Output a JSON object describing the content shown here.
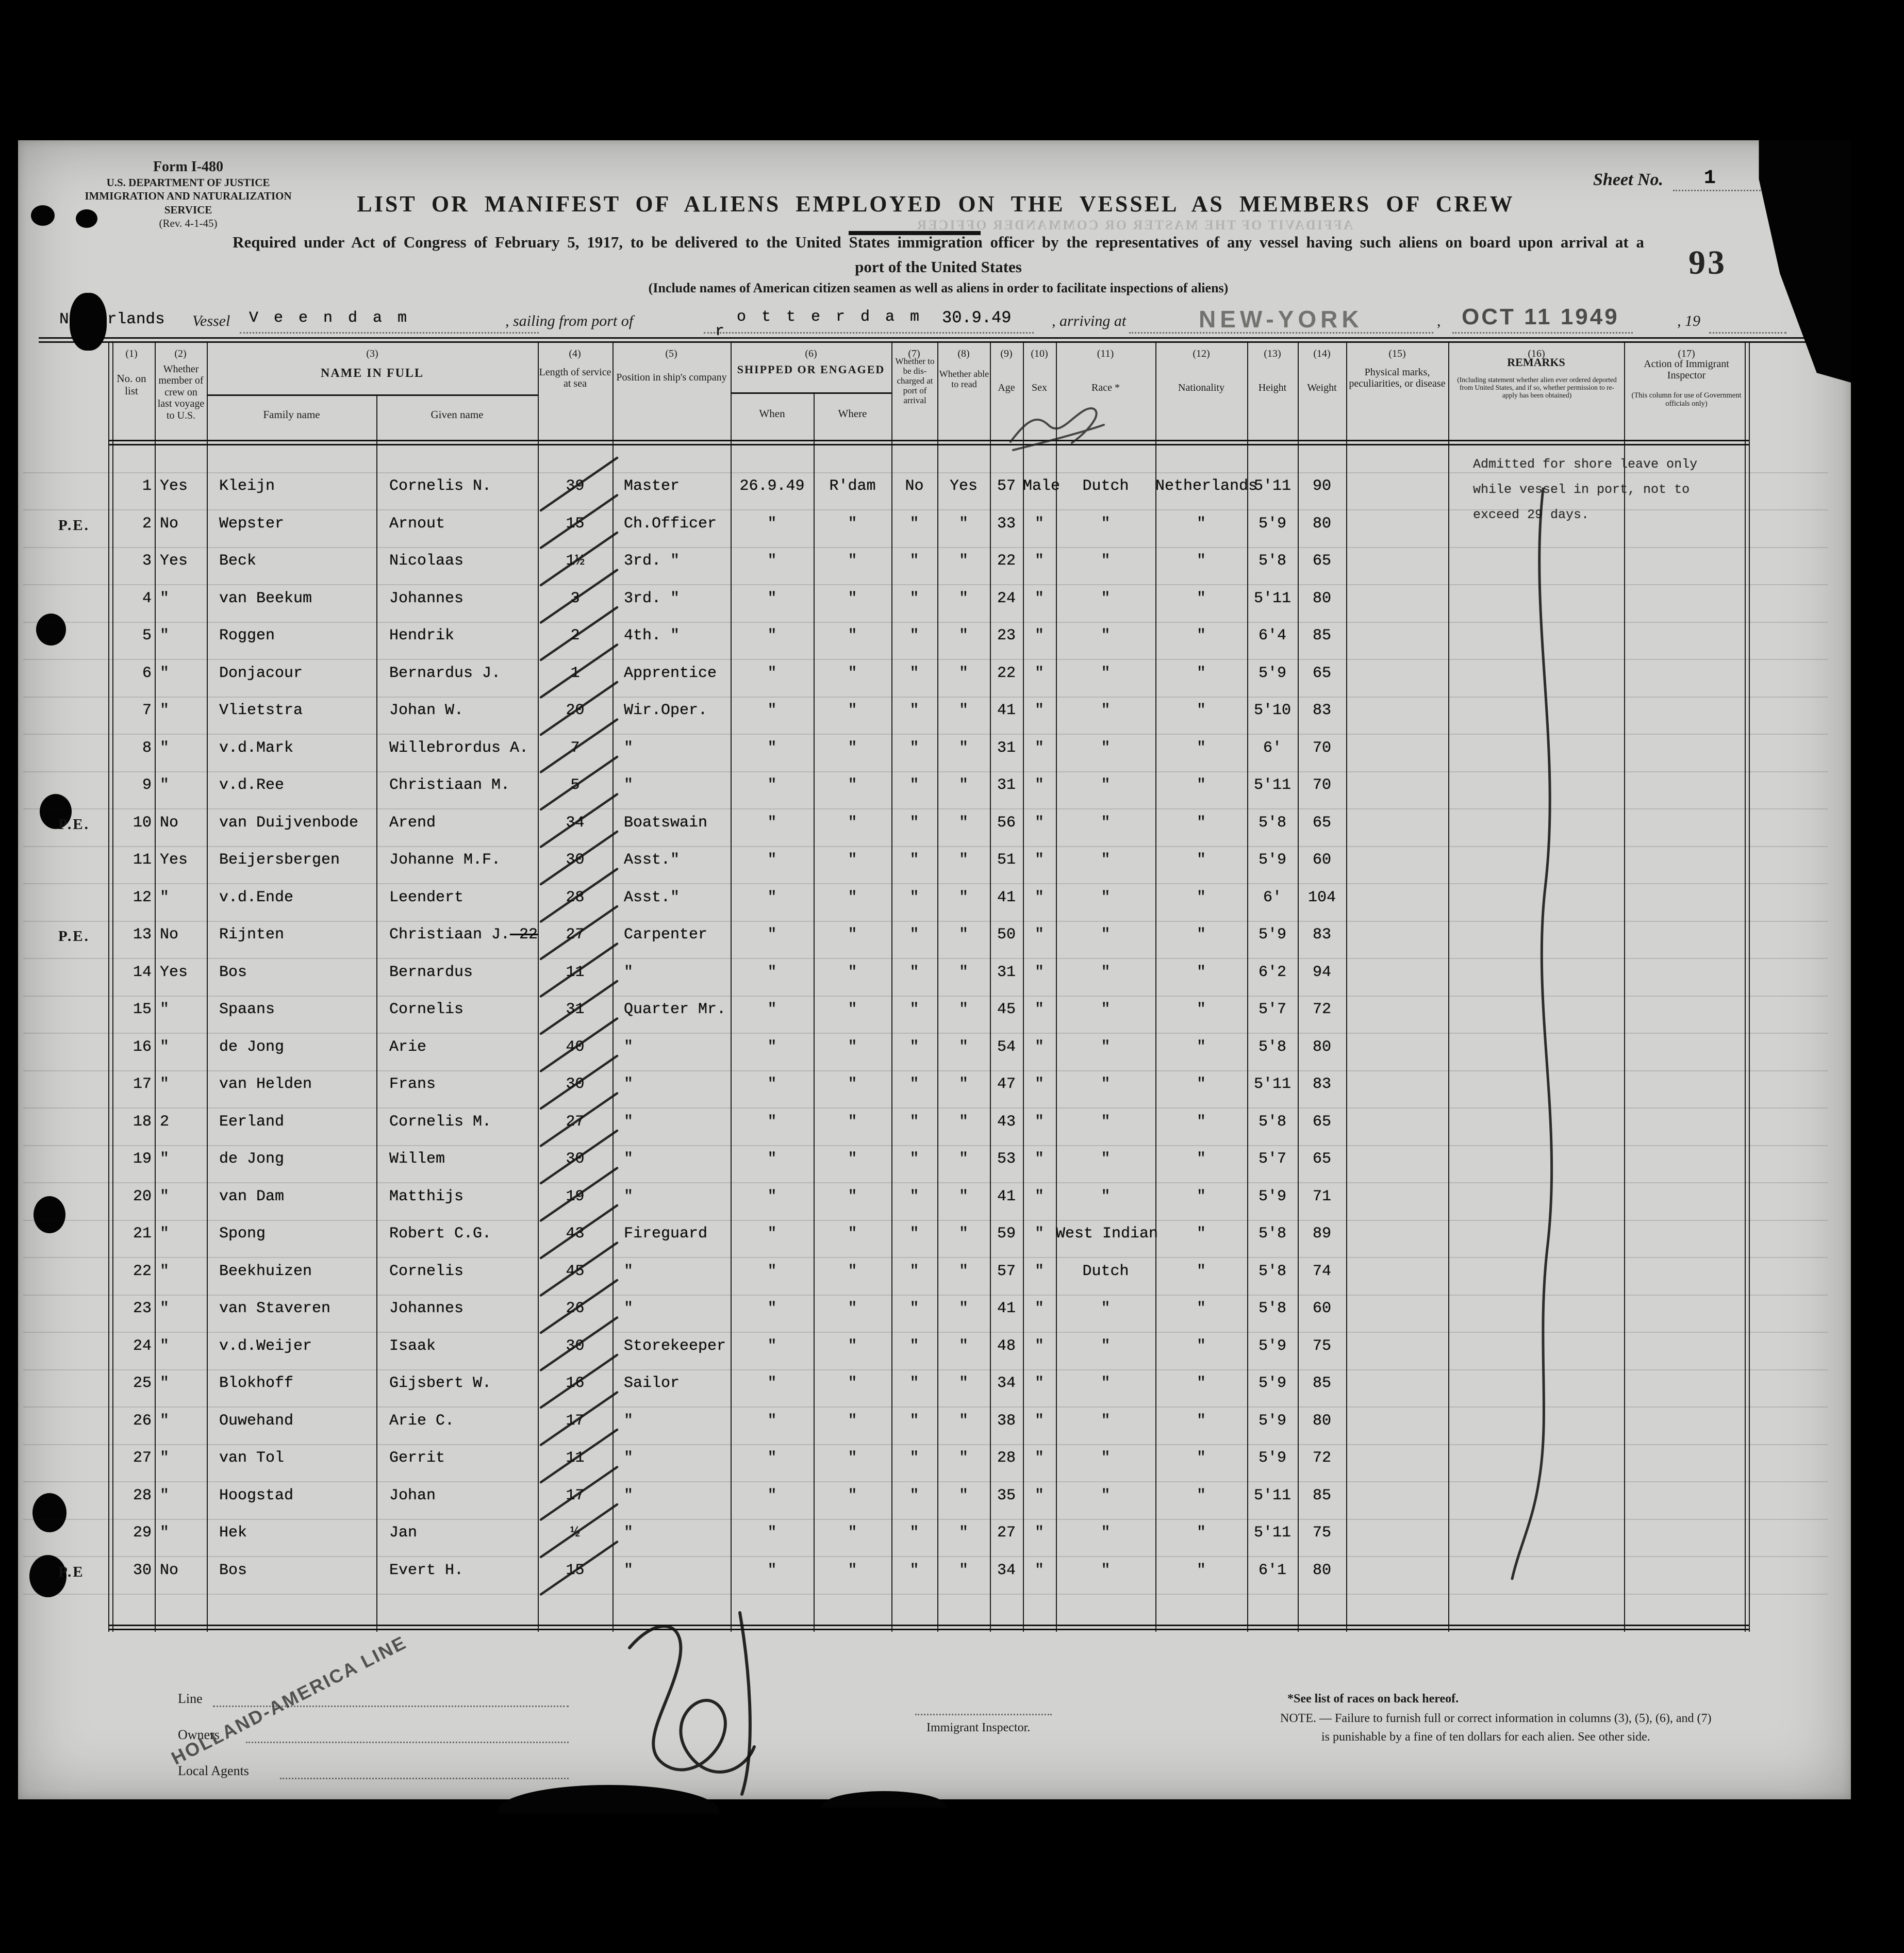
{
  "form": {
    "form_id": "Form I-480",
    "dept": "U.S. DEPARTMENT OF JUSTICE",
    "service": "IMMIGRATION AND NATURALIZATION SERVICE",
    "revision": "(Rev. 4-1-45)",
    "sheet_label": "Sheet No.",
    "sheet_value": "1",
    "stamp_number": "93",
    "title": "LIST OR MANIFEST OF ALIENS EMPLOYED ON THE VESSEL AS MEMBERS OF CREW",
    "subtitle_line1": "Required under Act of Congress of February 5, 1917, to be delivered to the United States immigration officer by the representatives of any vessel having such aliens on board upon arrival at a",
    "subtitle_line2": "port of the United States",
    "include_note": "(Include names of American citizen seamen as well as aliens in order to facilitate inspections of aliens)",
    "bleed_through": "AFFIDAVIT OF THE MASTER OR COMMANDER OFFICER"
  },
  "voyage": {
    "country": "Netherlands",
    "vessel_label": "Vessel",
    "vessel_name": "V e e n d a m",
    "sailing_label": ", sailing from port of",
    "port_first_letter": "r",
    "port_rest": "o t t e r d a m",
    "sailing_date": "30.9.49",
    "arriving_label": ", arriving at",
    "arrival_port": "NEW-YORK",
    "comma": ",",
    "arrival_stamp": "OCT 11 1949",
    "year_label": ", 19"
  },
  "columns": {
    "numbers": [
      "(1)",
      "(2)",
      "(3)",
      "(4)",
      "(5)",
      "(6)",
      "(7)",
      "(8)",
      "(9)",
      "(10)",
      "(11)",
      "(12)",
      "(13)",
      "(14)",
      "(15)",
      "(16)",
      "(17)"
    ],
    "c1": "No. on list",
    "c2": "Whether member of crew on last voyage to U.S.",
    "c3": "NAME IN FULL",
    "c3a": "Family name",
    "c3b": "Given name",
    "c4": "Length of service at sea",
    "c5": "Position in ship's company",
    "c6": "SHIPPED OR ENGAGED",
    "c6a": "When",
    "c6b": "Where",
    "c7": "Whether to be dis- charged at port of arrival",
    "c8": "Whether able to read",
    "c9": "Age",
    "c10": "Sex",
    "c11": "Race *",
    "c12": "Nationality",
    "c13": "Height",
    "c14": "Weight",
    "c15": "Physical marks, peculiarities, or disease",
    "c16": "REMARKS",
    "c16_note": "(Including statement whether alien ever ordered deported from United States, and if so, whether permission to re- apply has been obtained)",
    "c17": "Action of Immigrant Inspector",
    "c17_note": "(This column for use of Government officials only)"
  },
  "remark_lines": [
    "Admitted for shore leave only",
    "while vessel in port, not to",
    "exceed 29 days."
  ],
  "rows": [
    {
      "no": "1",
      "margin": "",
      "crew": "Yes",
      "family": "Kleijn",
      "given": "Cornelis N.",
      "service": "39",
      "position": "Master",
      "when": "26.9.49",
      "where": "R'dam",
      "disch": "No",
      "read": "Yes",
      "age": "57",
      "sex": "Male",
      "race": "Dutch",
      "nat": "Netherlands",
      "height": "5'11",
      "weight": "90"
    },
    {
      "no": "2",
      "margin": "P.E.",
      "crew": "No",
      "family": "Wepster",
      "given": "Arnout",
      "service": "15",
      "position": "Ch.Officer",
      "when": "\"",
      "where": "\"",
      "disch": "\"",
      "read": "\"",
      "age": "33",
      "sex": "\"",
      "race": "\"",
      "nat": "\"",
      "height": "5'9",
      "weight": "80"
    },
    {
      "no": "3",
      "margin": "",
      "crew": "Yes",
      "family": "Beck",
      "given": "Nicolaas",
      "service": "1½",
      "position": "3rd. \"",
      "when": "\"",
      "where": "\"",
      "disch": "\"",
      "read": "\"",
      "age": "22",
      "sex": "\"",
      "race": "\"",
      "nat": "\"",
      "height": "5'8",
      "weight": "65"
    },
    {
      "no": "4",
      "margin": "",
      "crew": "\"",
      "family": "van Beekum",
      "given": "Johannes",
      "service": "3",
      "position": "3rd. \"",
      "when": "\"",
      "where": "\"",
      "disch": "\"",
      "read": "\"",
      "age": "24",
      "sex": "\"",
      "race": "\"",
      "nat": "\"",
      "height": "5'11",
      "weight": "80"
    },
    {
      "no": "5",
      "margin": "",
      "crew": "\"",
      "family": "Roggen",
      "given": "Hendrik",
      "service": "2",
      "position": "4th. \"",
      "when": "\"",
      "where": "\"",
      "disch": "\"",
      "read": "\"",
      "age": "23",
      "sex": "\"",
      "race": "\"",
      "nat": "\"",
      "height": "6'4",
      "weight": "85"
    },
    {
      "no": "6",
      "margin": "",
      "crew": "\"",
      "family": "Donjacour",
      "given": "Bernardus J.",
      "service": "1",
      "position": "Apprentice",
      "when": "\"",
      "where": "\"",
      "disch": "\"",
      "read": "\"",
      "age": "22",
      "sex": "\"",
      "race": "\"",
      "nat": "\"",
      "height": "5'9",
      "weight": "65"
    },
    {
      "no": "7",
      "margin": "",
      "crew": "\"",
      "family": "Vlietstra",
      "given": "Johan W.",
      "service": "20",
      "position": "Wir.Oper.",
      "when": "\"",
      "where": "\"",
      "disch": "\"",
      "read": "\"",
      "age": "41",
      "sex": "\"",
      "race": "\"",
      "nat": "\"",
      "height": "5'10",
      "weight": "83"
    },
    {
      "no": "8",
      "margin": "",
      "crew": "\"",
      "family": "v.d.Mark",
      "given": "Willebrordus A.",
      "service": "7",
      "position": "\"",
      "when": "\"",
      "where": "\"",
      "disch": "\"",
      "read": "\"",
      "age": "31",
      "sex": "\"",
      "race": "\"",
      "nat": "\"",
      "height": "6'",
      "weight": "70"
    },
    {
      "no": "9",
      "margin": "",
      "crew": "\"",
      "family": "v.d.Ree",
      "given": "Christiaan M.",
      "service": "5",
      "position": "\"",
      "when": "\"",
      "where": "\"",
      "disch": "\"",
      "read": "\"",
      "age": "31",
      "sex": "\"",
      "race": "\"",
      "nat": "\"",
      "height": "5'11",
      "weight": "70"
    },
    {
      "no": "10",
      "margin": "P.E.",
      "crew": "No",
      "family": "van Duijvenbode",
      "given": "Arend",
      "service": "34",
      "position": "Boatswain",
      "when": "\"",
      "where": "\"",
      "disch": "\"",
      "read": "\"",
      "age": "56",
      "sex": "\"",
      "race": "\"",
      "nat": "\"",
      "height": "5'8",
      "weight": "65"
    },
    {
      "no": "11",
      "margin": "",
      "crew": "Yes",
      "family": "Beijersbergen",
      "given": "Johanne M.F.",
      "service": "30",
      "position": "Asst.\"",
      "when": "\"",
      "where": "\"",
      "disch": "\"",
      "read": "\"",
      "age": "51",
      "sex": "\"",
      "race": "\"",
      "nat": "\"",
      "height": "5'9",
      "weight": "60"
    },
    {
      "no": "12",
      "margin": "",
      "crew": "\"",
      "family": "v.d.Ende",
      "given": "Leendert",
      "service": "28",
      "position": "Asst.\"",
      "when": "\"",
      "where": "\"",
      "disch": "\"",
      "read": "\"",
      "age": "41",
      "sex": "\"",
      "race": "\"",
      "nat": "\"",
      "height": "6'",
      "weight": "104"
    },
    {
      "no": "13",
      "margin": "P.E.",
      "crew": "No",
      "family": "Rijnten",
      "given": "Christiaan J.",
      "given_struck": "22",
      "service": "27",
      "position": "Carpenter",
      "when": "\"",
      "where": "\"",
      "disch": "\"",
      "read": "\"",
      "age": "50",
      "sex": "\"",
      "race": "\"",
      "nat": "\"",
      "height": "5'9",
      "weight": "83"
    },
    {
      "no": "14",
      "margin": "",
      "crew": "Yes",
      "family": "Bos",
      "given": "Bernardus",
      "service": "11",
      "position": "\"",
      "when": "\"",
      "where": "\"",
      "disch": "\"",
      "read": "\"",
      "age": "31",
      "sex": "\"",
      "race": "\"",
      "nat": "\"",
      "height": "6'2",
      "weight": "94"
    },
    {
      "no": "15",
      "margin": "",
      "crew": "\"",
      "family": "Spaans",
      "given": "Cornelis",
      "service": "31",
      "position": "Quarter Mr.",
      "when": "\"",
      "where": "\"",
      "disch": "\"",
      "read": "\"",
      "age": "45",
      "sex": "\"",
      "race": "\"",
      "nat": "\"",
      "height": "5'7",
      "weight": "72"
    },
    {
      "no": "16",
      "margin": "",
      "crew": "\"",
      "family": "de Jong",
      "given": "Arie",
      "service": "40",
      "position": "\"",
      "when": "\"",
      "where": "\"",
      "disch": "\"",
      "read": "\"",
      "age": "54",
      "sex": "\"",
      "race": "\"",
      "nat": "\"",
      "height": "5'8",
      "weight": "80"
    },
    {
      "no": "17",
      "margin": "",
      "crew": "\"",
      "family": "van Helden",
      "given": "Frans",
      "service": "30",
      "position": "\"",
      "when": "\"",
      "where": "\"",
      "disch": "\"",
      "read": "\"",
      "age": "47",
      "sex": "\"",
      "race": "\"",
      "nat": "\"",
      "height": "5'11",
      "weight": "83"
    },
    {
      "no": "18",
      "margin": "",
      "crew": "2",
      "family": "Eerland",
      "given": "Cornelis M.",
      "service": "27",
      "position": "\"",
      "when": "\"",
      "where": "\"",
      "disch": "\"",
      "read": "\"",
      "age": "43",
      "sex": "\"",
      "race": "\"",
      "nat": "\"",
      "height": "5'8",
      "weight": "65"
    },
    {
      "no": "19",
      "margin": "",
      "crew": "\"",
      "family": "de Jong",
      "given": "Willem",
      "service": "30",
      "position": "\"",
      "when": "\"",
      "where": "\"",
      "disch": "\"",
      "read": "\"",
      "age": "53",
      "sex": "\"",
      "race": "\"",
      "nat": "\"",
      "height": "5'7",
      "weight": "65"
    },
    {
      "no": "20",
      "margin": "",
      "crew": "\"",
      "family": "van Dam",
      "given": "Matthijs",
      "service": "19",
      "position": "\"",
      "when": "\"",
      "where": "\"",
      "disch": "\"",
      "read": "\"",
      "age": "41",
      "sex": "\"",
      "race": "\"",
      "nat": "\"",
      "height": "5'9",
      "weight": "71"
    },
    {
      "no": "21",
      "margin": "",
      "crew": "\"",
      "family": "Spong",
      "given": "Robert C.G.",
      "service": "43",
      "position": "Fireguard",
      "when": "\"",
      "where": "\"",
      "disch": "\"",
      "read": "\"",
      "age": "59",
      "sex": "\"",
      "race": "West Indian",
      "nat": "\"",
      "height": "5'8",
      "weight": "89"
    },
    {
      "no": "22",
      "margin": "",
      "crew": "\"",
      "family": "Beekhuizen",
      "given": "Cornelis",
      "service": "45",
      "position": "\"",
      "when": "\"",
      "where": "\"",
      "disch": "\"",
      "read": "\"",
      "age": "57",
      "sex": "\"",
      "race": "Dutch",
      "nat": "\"",
      "height": "5'8",
      "weight": "74"
    },
    {
      "no": "23",
      "margin": "",
      "crew": "\"",
      "family": "van Staveren",
      "given": "Johannes",
      "service": "26",
      "position": "\"",
      "when": "\"",
      "where": "\"",
      "disch": "\"",
      "read": "\"",
      "age": "41",
      "sex": "\"",
      "race": "\"",
      "nat": "\"",
      "height": "5'8",
      "weight": "60"
    },
    {
      "no": "24",
      "margin": "",
      "crew": "\"",
      "family": "v.d.Weijer",
      "given": "Isaak",
      "service": "30",
      "position": "Storekeeper",
      "when": "\"",
      "where": "\"",
      "disch": "\"",
      "read": "\"",
      "age": "48",
      "sex": "\"",
      "race": "\"",
      "nat": "\"",
      "height": "5'9",
      "weight": "75"
    },
    {
      "no": "25",
      "margin": "",
      "crew": "\"",
      "family": "Blokhoff",
      "given": "Gijsbert W.",
      "service": "16",
      "position": "Sailor",
      "when": "\"",
      "where": "\"",
      "disch": "\"",
      "read": "\"",
      "age": "34",
      "sex": "\"",
      "race": "\"",
      "nat": "\"",
      "height": "5'9",
      "weight": "85"
    },
    {
      "no": "26",
      "margin": "",
      "crew": "\"",
      "family": "Ouwehand",
      "given": "Arie C.",
      "service": "17",
      "position": "\"",
      "when": "\"",
      "where": "\"",
      "disch": "\"",
      "read": "\"",
      "age": "38",
      "sex": "\"",
      "race": "\"",
      "nat": "\"",
      "height": "5'9",
      "weight": "80"
    },
    {
      "no": "27",
      "margin": "",
      "crew": "\"",
      "family": "van Tol",
      "given": "Gerrit",
      "service": "11",
      "position": "\"",
      "when": "\"",
      "where": "\"",
      "disch": "\"",
      "read": "\"",
      "age": "28",
      "sex": "\"",
      "race": "\"",
      "nat": "\"",
      "height": "5'9",
      "weight": "72"
    },
    {
      "no": "28",
      "margin": "",
      "crew": "\"",
      "family": "Hoogstad",
      "given": "Johan",
      "service": "17",
      "position": "\"",
      "when": "\"",
      "where": "\"",
      "disch": "\"",
      "read": "\"",
      "age": "35",
      "sex": "\"",
      "race": "\"",
      "nat": "\"",
      "height": "5'11",
      "weight": "85"
    },
    {
      "no": "29",
      "margin": "",
      "crew": "\"",
      "family": "Hek",
      "given": "Jan",
      "service": "½",
      "position": "\"",
      "when": "\"",
      "where": "\"",
      "disch": "\"",
      "read": "\"",
      "age": "27",
      "sex": "\"",
      "race": "\"",
      "nat": "\"",
      "height": "5'11",
      "weight": "75"
    },
    {
      "no": "30",
      "margin": "P.E",
      "crew": "No",
      "family": "Bos",
      "given": "Evert H.",
      "service": "15",
      "position": "\"",
      "when": "\"",
      "where": "\"",
      "disch": "\"",
      "read": "\"",
      "age": "34",
      "sex": "\"",
      "race": "\"",
      "nat": "\"",
      "height": "6'1",
      "weight": "80"
    }
  ],
  "footer": {
    "line_label": "Line",
    "owners_label": "Owners",
    "agents_label": "Local Agents",
    "agents_stamp": "HOLLAND-AMERICA LINE",
    "inspector_label": "Immigrant Inspector.",
    "races_note": "*See list of races on back hereof.",
    "note_line1": "NOTE. — Failure to furnish full or correct information in columns (3), (5), (6), and (7)",
    "note_line2": "is punishable by a fine of ten dollars for each alien.   See other side."
  },
  "colors": {
    "paper": "#d2d2d0",
    "ink": "#141414",
    "stamp_gray": "#72726f",
    "stamp_dark": "#4c4c4a"
  }
}
